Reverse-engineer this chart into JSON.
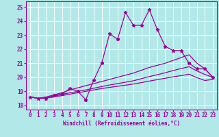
{
  "xlabel": "Windchill (Refroidissement éolien,°C)",
  "bg_color": "#b2e8e8",
  "grid_color": "#ffffff",
  "line_color": "#990099",
  "ylim": [
    17.7,
    25.4
  ],
  "xlim": [
    -0.5,
    23.5
  ],
  "yticks": [
    18,
    19,
    20,
    21,
    22,
    23,
    24,
    25
  ],
  "xticks": [
    0,
    1,
    2,
    3,
    4,
    5,
    6,
    7,
    8,
    9,
    10,
    11,
    12,
    13,
    14,
    15,
    16,
    17,
    18,
    19,
    20,
    21,
    22,
    23
  ],
  "lines": [
    {
      "x": [
        0,
        1,
        2,
        3,
        4,
        5,
        6,
        7,
        8,
        9,
        10,
        11,
        12,
        13,
        14,
        15,
        16,
        17,
        18,
        19,
        20,
        21,
        22,
        23
      ],
      "y": [
        18.6,
        18.5,
        18.5,
        18.7,
        18.8,
        19.2,
        19.0,
        18.4,
        19.8,
        21.0,
        23.1,
        22.7,
        24.6,
        23.7,
        23.7,
        24.8,
        23.4,
        22.2,
        21.9,
        21.9,
        21.0,
        20.6,
        20.6,
        20.0
      ],
      "marker": "*",
      "markersize": 3.5,
      "linewidth": 0.9
    },
    {
      "x": [
        0,
        1,
        2,
        3,
        4,
        5,
        6,
        7,
        8,
        9,
        10,
        11,
        12,
        13,
        14,
        15,
        16,
        17,
        18,
        19,
        20,
        21,
        22,
        23
      ],
      "y": [
        18.6,
        18.5,
        18.6,
        18.75,
        18.9,
        19.1,
        19.25,
        19.4,
        19.55,
        19.7,
        19.85,
        20.0,
        20.15,
        20.3,
        20.5,
        20.7,
        20.85,
        21.0,
        21.2,
        21.4,
        21.6,
        21.0,
        20.6,
        20.0
      ],
      "marker": "None",
      "markersize": 0,
      "linewidth": 0.9
    },
    {
      "x": [
        0,
        1,
        2,
        3,
        4,
        5,
        6,
        7,
        8,
        9,
        10,
        11,
        12,
        13,
        14,
        15,
        16,
        17,
        18,
        19,
        20,
        21,
        22,
        23
      ],
      "y": [
        18.6,
        18.5,
        18.55,
        18.65,
        18.78,
        18.9,
        19.0,
        19.1,
        19.22,
        19.34,
        19.45,
        19.55,
        19.65,
        19.75,
        19.9,
        20.05,
        20.18,
        20.32,
        20.48,
        20.62,
        20.75,
        20.45,
        20.2,
        20.0
      ],
      "marker": "None",
      "markersize": 0,
      "linewidth": 0.9
    },
    {
      "x": [
        0,
        1,
        2,
        3,
        4,
        5,
        6,
        7,
        8,
        9,
        10,
        11,
        12,
        13,
        14,
        15,
        16,
        17,
        18,
        19,
        20,
        21,
        22,
        23
      ],
      "y": [
        18.6,
        18.5,
        18.52,
        18.6,
        18.7,
        18.8,
        18.9,
        19.0,
        19.1,
        19.2,
        19.28,
        19.36,
        19.44,
        19.52,
        19.62,
        19.73,
        19.83,
        19.93,
        20.03,
        20.12,
        20.22,
        19.97,
        19.77,
        19.85
      ],
      "marker": "None",
      "markersize": 0,
      "linewidth": 0.9
    }
  ]
}
